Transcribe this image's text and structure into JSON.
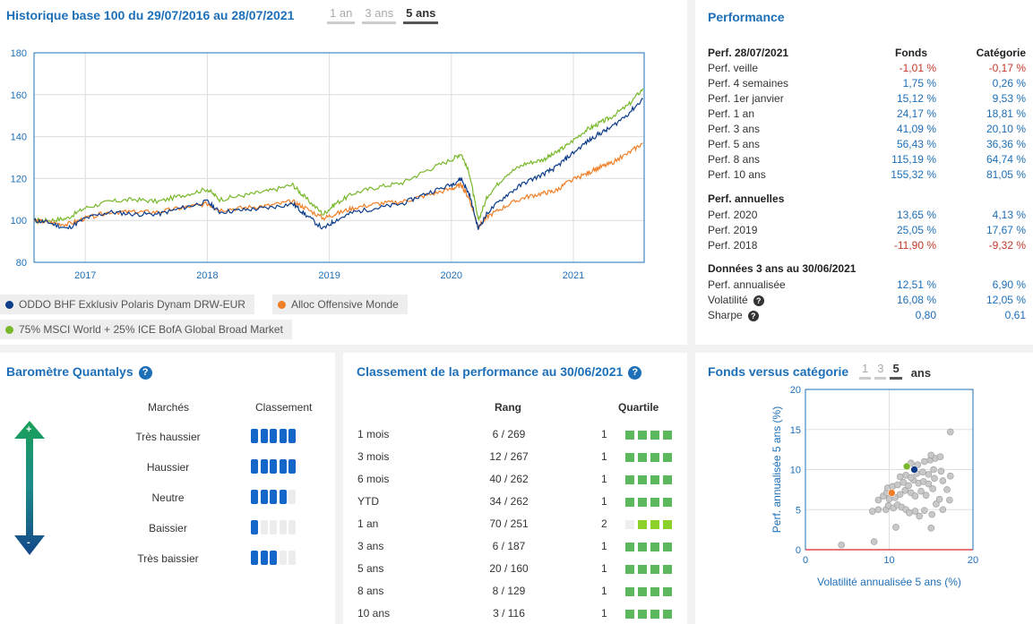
{
  "history": {
    "title": "Historique base 100 du 29/07/2016 au 28/07/2021",
    "tabs": [
      {
        "label": "1 an",
        "active": false
      },
      {
        "label": "3 ans",
        "active": false
      },
      {
        "label": "5 ans",
        "active": true
      }
    ],
    "chart_data": {
      "type": "line",
      "ylim": [
        80,
        180
      ],
      "yticks": [
        "80",
        "100",
        "120",
        "140",
        "160",
        "180"
      ],
      "xticks": [
        "2017",
        "2018",
        "2019",
        "2020",
        "2021"
      ],
      "series": [
        {
          "name": "ODDO BHF Exklusiv Polaris Dynam DRW-EUR",
          "color": "#0d3d8a",
          "points": [
            [
              2016.58,
              100
            ],
            [
              2016.7,
              99
            ],
            [
              2016.85,
              96
            ],
            [
              2017.0,
              101
            ],
            [
              2017.2,
              104
            ],
            [
              2017.4,
              103
            ],
            [
              2017.6,
              103
            ],
            [
              2017.8,
              106
            ],
            [
              2018.0,
              109
            ],
            [
              2018.1,
              104
            ],
            [
              2018.3,
              105
            ],
            [
              2018.5,
              106
            ],
            [
              2018.7,
              108
            ],
            [
              2018.8,
              103
            ],
            [
              2018.95,
              96
            ],
            [
              2019.05,
              100
            ],
            [
              2019.2,
              104
            ],
            [
              2019.4,
              106
            ],
            [
              2019.6,
              108
            ],
            [
              2019.8,
              113
            ],
            [
              2020.0,
              117
            ],
            [
              2020.08,
              120
            ],
            [
              2020.15,
              112
            ],
            [
              2020.22,
              96
            ],
            [
              2020.3,
              104
            ],
            [
              2020.45,
              112
            ],
            [
              2020.6,
              118
            ],
            [
              2020.75,
              122
            ],
            [
              2020.85,
              125
            ],
            [
              2020.95,
              130
            ],
            [
              2021.1,
              137
            ],
            [
              2021.2,
              141
            ],
            [
              2021.3,
              144
            ],
            [
              2021.45,
              151
            ],
            [
              2021.57,
              158
            ]
          ]
        },
        {
          "name": "Alloc Offensive Monde",
          "color": "#f07e26",
          "points": [
            [
              2016.58,
              100
            ],
            [
              2016.7,
              99
            ],
            [
              2016.85,
              98
            ],
            [
              2017.0,
              101
            ],
            [
              2017.2,
              104
            ],
            [
              2017.4,
              104
            ],
            [
              2017.6,
              104
            ],
            [
              2017.8,
              106
            ],
            [
              2018.0,
              108
            ],
            [
              2018.1,
              105
            ],
            [
              2018.3,
              106
            ],
            [
              2018.5,
              107
            ],
            [
              2018.7,
              109
            ],
            [
              2018.8,
              106
            ],
            [
              2018.95,
              101
            ],
            [
              2019.05,
              103
            ],
            [
              2019.2,
              106
            ],
            [
              2019.4,
              108
            ],
            [
              2019.6,
              109
            ],
            [
              2019.8,
              112
            ],
            [
              2020.0,
              115
            ],
            [
              2020.08,
              117
            ],
            [
              2020.15,
              110
            ],
            [
              2020.22,
              97
            ],
            [
              2020.3,
              102
            ],
            [
              2020.45,
              107
            ],
            [
              2020.6,
              111
            ],
            [
              2020.75,
              113
            ],
            [
              2020.85,
              114
            ],
            [
              2020.95,
              118
            ],
            [
              2021.1,
              122
            ],
            [
              2021.2,
              125
            ],
            [
              2021.3,
              127
            ],
            [
              2021.45,
              132
            ],
            [
              2021.57,
              137
            ]
          ]
        },
        {
          "name": "75% MSCI World + 25% ICE BofA Global Broad Market",
          "color": "#78b82a",
          "points": [
            [
              2016.58,
              100
            ],
            [
              2016.7,
              100
            ],
            [
              2016.85,
              101
            ],
            [
              2017.0,
              106
            ],
            [
              2017.2,
              109
            ],
            [
              2017.4,
              110
            ],
            [
              2017.6,
              109
            ],
            [
              2017.8,
              112
            ],
            [
              2018.0,
              115
            ],
            [
              2018.1,
              110
            ],
            [
              2018.3,
              112
            ],
            [
              2018.5,
              114
            ],
            [
              2018.7,
              117
            ],
            [
              2018.8,
              111
            ],
            [
              2018.95,
              103
            ],
            [
              2019.05,
              108
            ],
            [
              2019.2,
              113
            ],
            [
              2019.4,
              116
            ],
            [
              2019.6,
              118
            ],
            [
              2019.8,
              124
            ],
            [
              2020.0,
              129
            ],
            [
              2020.08,
              132
            ],
            [
              2020.15,
              122
            ],
            [
              2020.22,
              100
            ],
            [
              2020.3,
              112
            ],
            [
              2020.45,
              122
            ],
            [
              2020.6,
              127
            ],
            [
              2020.75,
              129
            ],
            [
              2020.85,
              132
            ],
            [
              2020.95,
              136
            ],
            [
              2021.1,
              143
            ],
            [
              2021.2,
              146
            ],
            [
              2021.3,
              149
            ],
            [
              2021.45,
              155
            ],
            [
              2021.57,
              163
            ]
          ]
        }
      ]
    }
  },
  "performance": {
    "title": "Performance",
    "header": {
      "label": "Perf. 28/07/2021",
      "fund": "Fonds",
      "cat": "Catégorie"
    },
    "rows": [
      {
        "label": "Perf. veille",
        "fund": "-1,01 %",
        "cat": "-0,17 %",
        "fneg": true,
        "cneg": true
      },
      {
        "label": "Perf. 4 semaines",
        "fund": "1,75 %",
        "cat": "0,26 %"
      },
      {
        "label": "Perf. 1er janvier",
        "fund": "15,12 %",
        "cat": "9,53 %"
      },
      {
        "label": "Perf. 1 an",
        "fund": "24,17 %",
        "cat": "18,81 %"
      },
      {
        "label": "Perf. 3 ans",
        "fund": "41,09 %",
        "cat": "20,10 %"
      },
      {
        "label": "Perf. 5 ans",
        "fund": "56,43 %",
        "cat": "36,36 %"
      },
      {
        "label": "Perf. 8 ans",
        "fund": "115,19 %",
        "cat": "64,74 %"
      },
      {
        "label": "Perf. 10 ans",
        "fund": "155,32 %",
        "cat": "81,05 %"
      }
    ],
    "annual_title": "Perf. annuelles",
    "annual": [
      {
        "label": "Perf. 2020",
        "fund": "13,65 %",
        "cat": "4,13 %"
      },
      {
        "label": "Perf. 2019",
        "fund": "25,05 %",
        "cat": "17,67 %"
      },
      {
        "label": "Perf. 2018",
        "fund": "-11,90 %",
        "cat": "-9,32 %",
        "fneg": true,
        "cneg": true
      }
    ],
    "data3_title": "Données 3 ans au 30/06/2021",
    "data3": [
      {
        "label": "Perf. annualisée",
        "fund": "12,51 %",
        "cat": "6,90 %"
      },
      {
        "label": "Volatilité",
        "fund": "16,08 %",
        "cat": "12,05 %",
        "help": true
      },
      {
        "label": "Sharpe",
        "fund": "0,80",
        "cat": "0,61",
        "help": true
      }
    ]
  },
  "barometre": {
    "title": "Baromètre Quantalys",
    "col_markets": "Marchés",
    "col_rank": "Classement",
    "arrow_plus": "+",
    "arrow_minus": "-",
    "rows": [
      {
        "label": "Très haussier",
        "filled": 5
      },
      {
        "label": "Haussier",
        "filled": 5
      },
      {
        "label": "Neutre",
        "filled": 4
      },
      {
        "label": "Baissier",
        "filled": 1
      },
      {
        "label": "Très baissier",
        "filled": 3
      }
    ]
  },
  "classement": {
    "title": "Classement de la performance au 30/06/2021",
    "col_rang": "Rang",
    "col_quartile": "Quartile",
    "rows": [
      {
        "period": "1 mois",
        "rang": "6 / 269",
        "quartile": "1"
      },
      {
        "period": "3 mois",
        "rang": "12 / 267",
        "quartile": "1"
      },
      {
        "period": "6 mois",
        "rang": "40 / 262",
        "quartile": "1"
      },
      {
        "period": "YTD",
        "rang": "34 / 262",
        "quartile": "1"
      },
      {
        "period": "1 an",
        "rang": "70 / 251",
        "quartile": "2"
      },
      {
        "period": "3 ans",
        "rang": "6 / 187",
        "quartile": "1"
      },
      {
        "period": "5 ans",
        "rang": "20 / 160",
        "quartile": "1"
      },
      {
        "period": "8 ans",
        "rang": "8 / 129",
        "quartile": "1"
      },
      {
        "period": "10 ans",
        "rang": "3 / 116",
        "quartile": "1"
      }
    ]
  },
  "scatter": {
    "title": "Fonds versus catégorie",
    "tabs": [
      {
        "label": "1",
        "active": false
      },
      {
        "label": "3",
        "active": false
      },
      {
        "label": "5",
        "active": true
      }
    ],
    "tabs_suffix": "ans",
    "chart_data": {
      "type": "scatter",
      "xlabel": "Volatilité annualisée 5 ans (%)",
      "ylabel": "Perf. annualisée 5 ans (%)",
      "xlim": [
        0,
        20
      ],
      "ylim": [
        0,
        20
      ],
      "xticks": [
        "0",
        "10",
        "20"
      ],
      "yticks": [
        "0",
        "5",
        "10",
        "15",
        "20"
      ],
      "fund": {
        "x": 13.0,
        "y": 10.0,
        "color": "#0d3d8a"
      },
      "category": {
        "x": 10.3,
        "y": 7.1,
        "color": "#f07e26"
      },
      "index": {
        "x": 12.1,
        "y": 10.4,
        "color": "#78b82a"
      },
      "peers": [
        [
          4.3,
          0.6
        ],
        [
          8.2,
          1.0
        ],
        [
          10.8,
          2.8
        ],
        [
          15.0,
          2.7
        ],
        [
          8.0,
          4.8
        ],
        [
          8.7,
          5.0
        ],
        [
          9.6,
          5.0
        ],
        [
          9.9,
          5.5
        ],
        [
          10.5,
          5.2
        ],
        [
          11.0,
          5.6
        ],
        [
          11.5,
          5.3
        ],
        [
          12.0,
          5.0
        ],
        [
          12.4,
          4.6
        ],
        [
          13.1,
          4.8
        ],
        [
          13.6,
          4.2
        ],
        [
          14.2,
          4.9
        ],
        [
          15.1,
          4.4
        ],
        [
          15.6,
          5.7
        ],
        [
          16.4,
          5.0
        ],
        [
          17.2,
          6.2
        ],
        [
          8.7,
          6.2
        ],
        [
          9.3,
          6.7
        ],
        [
          9.7,
          7.1
        ],
        [
          10.0,
          6.3
        ],
        [
          10.7,
          6.5
        ],
        [
          11.3,
          6.9
        ],
        [
          11.9,
          7.4
        ],
        [
          12.6,
          7.1
        ],
        [
          13.1,
          6.7
        ],
        [
          13.8,
          7.3
        ],
        [
          14.4,
          6.8
        ],
        [
          15.2,
          7.6
        ],
        [
          16.0,
          6.3
        ],
        [
          16.9,
          7.5
        ],
        [
          9.8,
          7.7
        ],
        [
          10.4,
          7.9
        ],
        [
          11.0,
          8.1
        ],
        [
          11.7,
          8.4
        ],
        [
          12.3,
          8.0
        ],
        [
          12.9,
          8.7
        ],
        [
          13.5,
          8.3
        ],
        [
          14.1,
          8.5
        ],
        [
          14.7,
          8.2
        ],
        [
          15.4,
          8.9
        ],
        [
          16.4,
          8.6
        ],
        [
          17.3,
          9.2
        ],
        [
          11.3,
          9.1
        ],
        [
          12.0,
          9.3
        ],
        [
          12.6,
          9.0
        ],
        [
          13.3,
          9.5
        ],
        [
          14.0,
          9.7
        ],
        [
          14.7,
          9.4
        ],
        [
          15.3,
          10.0
        ],
        [
          16.2,
          9.8
        ],
        [
          12.6,
          10.8
        ],
        [
          13.4,
          10.6
        ],
        [
          14.2,
          11.0
        ],
        [
          14.9,
          11.2
        ],
        [
          15.5,
          11.4
        ],
        [
          16.1,
          11.6
        ],
        [
          15.0,
          11.8
        ],
        [
          17.3,
          14.7
        ]
      ]
    }
  }
}
